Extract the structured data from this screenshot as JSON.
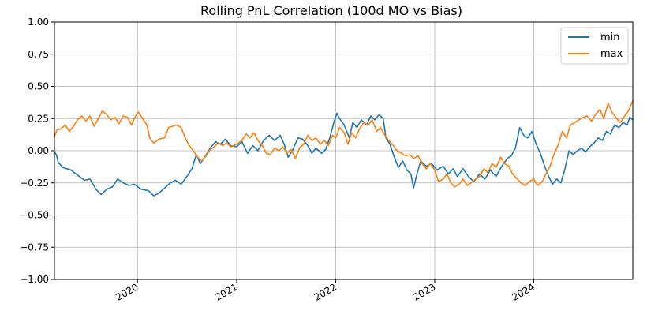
{
  "chart_data": {
    "type": "line",
    "title": "Rolling PnL Correlation (100d MO vs Bias)",
    "xlabel": "",
    "ylabel": "",
    "xlim": [
      "2019-03-01",
      "2024-12-31"
    ],
    "ylim": [
      -1.0,
      1.0
    ],
    "grid": true,
    "legend_position": "top-right",
    "y_ticks": [
      -1.0,
      -0.75,
      -0.5,
      -0.25,
      0.0,
      0.25,
      0.5,
      0.75,
      1.0
    ],
    "y_tick_labels": [
      "−1.00",
      "−0.75",
      "−0.50",
      "−0.25",
      "0.00",
      "0.25",
      "0.50",
      "0.75",
      "1.00"
    ],
    "x_ticks": [
      "2020-01-01",
      "2021-01-01",
      "2022-01-01",
      "2023-01-01",
      "2024-01-01"
    ],
    "x_tick_labels": [
      "2020",
      "2021",
      "2022",
      "2023",
      "2024"
    ],
    "series": [
      {
        "name": "min",
        "color": "#1f77b4",
        "points": [
          [
            "2019-03-01",
            -0.01
          ],
          [
            "2019-03-08",
            -0.03
          ],
          [
            "2019-03-15",
            -0.09
          ],
          [
            "2019-04-01",
            -0.13
          ],
          [
            "2019-05-01",
            -0.15
          ],
          [
            "2019-06-01",
            -0.2
          ],
          [
            "2019-06-20",
            -0.23
          ],
          [
            "2019-07-10",
            -0.22
          ],
          [
            "2019-08-01",
            -0.3
          ],
          [
            "2019-08-20",
            -0.34
          ],
          [
            "2019-09-10",
            -0.3
          ],
          [
            "2019-10-01",
            -0.28
          ],
          [
            "2019-10-20",
            -0.22
          ],
          [
            "2019-11-10",
            -0.25
          ],
          [
            "2019-12-01",
            -0.27
          ],
          [
            "2019-12-20",
            -0.26
          ],
          [
            "2020-01-15",
            -0.3
          ],
          [
            "2020-02-10",
            -0.31
          ],
          [
            "2020-03-01",
            -0.35
          ],
          [
            "2020-03-20",
            -0.33
          ],
          [
            "2020-04-10",
            -0.29
          ],
          [
            "2020-05-01",
            -0.25
          ],
          [
            "2020-05-20",
            -0.23
          ],
          [
            "2020-06-10",
            -0.26
          ],
          [
            "2020-07-01",
            -0.2
          ],
          [
            "2020-07-20",
            -0.14
          ],
          [
            "2020-08-05",
            -0.03
          ],
          [
            "2020-08-20",
            -0.1
          ],
          [
            "2020-09-05",
            -0.05
          ],
          [
            "2020-09-25",
            0.02
          ],
          [
            "2020-10-15",
            0.07
          ],
          [
            "2020-11-01",
            0.05
          ],
          [
            "2020-11-20",
            0.09
          ],
          [
            "2020-12-10",
            0.04
          ],
          [
            "2021-01-01",
            0.03
          ],
          [
            "2021-01-20",
            0.07
          ],
          [
            "2021-02-10",
            -0.02
          ],
          [
            "2021-03-01",
            0.04
          ],
          [
            "2021-03-20",
            0.0
          ],
          [
            "2021-04-10",
            0.08
          ],
          [
            "2021-05-01",
            0.12
          ],
          [
            "2021-05-20",
            0.08
          ],
          [
            "2021-06-10",
            0.12
          ],
          [
            "2021-06-25",
            0.05
          ],
          [
            "2021-07-10",
            -0.05
          ],
          [
            "2021-07-25",
            0.0
          ],
          [
            "2021-08-15",
            0.1
          ],
          [
            "2021-09-01",
            0.09
          ],
          [
            "2021-09-20",
            0.04
          ],
          [
            "2021-10-05",
            -0.02
          ],
          [
            "2021-10-20",
            0.02
          ],
          [
            "2021-11-10",
            -0.02
          ],
          [
            "2021-11-25",
            0.01
          ],
          [
            "2021-12-10",
            0.1
          ],
          [
            "2021-12-25",
            0.22
          ],
          [
            "2022-01-05",
            0.29
          ],
          [
            "2022-01-15",
            0.25
          ],
          [
            "2022-02-01",
            0.2
          ],
          [
            "2022-02-20",
            0.1
          ],
          [
            "2022-03-05",
            0.22
          ],
          [
            "2022-03-20",
            0.18
          ],
          [
            "2022-04-05",
            0.24
          ],
          [
            "2022-04-25",
            0.2
          ],
          [
            "2022-05-10",
            0.27
          ],
          [
            "2022-05-25",
            0.24
          ],
          [
            "2022-06-10",
            0.28
          ],
          [
            "2022-06-25",
            0.25
          ],
          [
            "2022-07-05",
            0.1
          ],
          [
            "2022-07-20",
            0.05
          ],
          [
            "2022-08-05",
            -0.05
          ],
          [
            "2022-08-20",
            -0.13
          ],
          [
            "2022-09-05",
            -0.08
          ],
          [
            "2022-09-20",
            -0.15
          ],
          [
            "2022-10-05",
            -0.18
          ],
          [
            "2022-10-15",
            -0.29
          ],
          [
            "2022-10-25",
            -0.2
          ],
          [
            "2022-11-10",
            -0.08
          ],
          [
            "2022-12-01",
            -0.12
          ],
          [
            "2022-12-20",
            -0.1
          ],
          [
            "2023-01-10",
            -0.15
          ],
          [
            "2023-02-01",
            -0.12
          ],
          [
            "2023-02-20",
            -0.18
          ],
          [
            "2023-03-10",
            -0.14
          ],
          [
            "2023-03-25",
            -0.2
          ],
          [
            "2023-04-15",
            -0.14
          ],
          [
            "2023-05-05",
            -0.2
          ],
          [
            "2023-05-25",
            -0.24
          ],
          [
            "2023-06-15",
            -0.18
          ],
          [
            "2023-07-05",
            -0.22
          ],
          [
            "2023-07-25",
            -0.15
          ],
          [
            "2023-08-15",
            -0.2
          ],
          [
            "2023-09-05",
            -0.12
          ],
          [
            "2023-09-25",
            -0.06
          ],
          [
            "2023-10-10",
            -0.04
          ],
          [
            "2023-10-25",
            0.02
          ],
          [
            "2023-11-10",
            0.18
          ],
          [
            "2023-11-25",
            0.12
          ],
          [
            "2023-12-10",
            0.1
          ],
          [
            "2023-12-25",
            0.15
          ],
          [
            "2024-01-10",
            0.05
          ],
          [
            "2024-01-25",
            -0.02
          ],
          [
            "2024-02-10",
            -0.12
          ],
          [
            "2024-02-25",
            -0.2
          ],
          [
            "2024-03-10",
            -0.26
          ],
          [
            "2024-03-25",
            -0.22
          ],
          [
            "2024-04-10",
            -0.25
          ],
          [
            "2024-04-25",
            -0.14
          ],
          [
            "2024-05-10",
            0.0
          ],
          [
            "2024-05-25",
            -0.03
          ],
          [
            "2024-06-10",
            0.0
          ],
          [
            "2024-06-25",
            0.02
          ],
          [
            "2024-07-10",
            -0.01
          ],
          [
            "2024-07-25",
            0.03
          ],
          [
            "2024-08-10",
            0.06
          ],
          [
            "2024-08-25",
            0.1
          ],
          [
            "2024-09-10",
            0.08
          ],
          [
            "2024-09-25",
            0.15
          ],
          [
            "2024-10-10",
            0.13
          ],
          [
            "2024-10-25",
            0.2
          ],
          [
            "2024-11-10",
            0.18
          ],
          [
            "2024-11-25",
            0.22
          ],
          [
            "2024-12-10",
            0.2
          ],
          [
            "2024-12-20",
            0.26
          ],
          [
            "2024-12-31",
            0.24
          ]
        ]
      },
      {
        "name": "max",
        "color": "#ff7f0e",
        "points": [
          [
            "2019-03-01",
            0.11
          ],
          [
            "2019-03-10",
            0.16
          ],
          [
            "2019-03-25",
            0.17
          ],
          [
            "2019-04-10",
            0.2
          ],
          [
            "2019-04-25",
            0.15
          ],
          [
            "2019-05-10",
            0.19
          ],
          [
            "2019-05-25",
            0.24
          ],
          [
            "2019-06-10",
            0.27
          ],
          [
            "2019-06-25",
            0.23
          ],
          [
            "2019-07-10",
            0.27
          ],
          [
            "2019-07-25",
            0.19
          ],
          [
            "2019-08-10",
            0.25
          ],
          [
            "2019-08-25",
            0.31
          ],
          [
            "2019-09-10",
            0.28
          ],
          [
            "2019-09-25",
            0.24
          ],
          [
            "2019-10-10",
            0.26
          ],
          [
            "2019-10-25",
            0.21
          ],
          [
            "2019-11-10",
            0.27
          ],
          [
            "2019-11-25",
            0.26
          ],
          [
            "2019-12-10",
            0.2
          ],
          [
            "2019-12-25",
            0.27
          ],
          [
            "2020-01-05",
            0.3
          ],
          [
            "2020-01-20",
            0.25
          ],
          [
            "2020-02-05",
            0.2
          ],
          [
            "2020-02-15",
            0.1
          ],
          [
            "2020-03-01",
            0.06
          ],
          [
            "2020-03-20",
            0.09
          ],
          [
            "2020-04-10",
            0.1
          ],
          [
            "2020-04-25",
            0.18
          ],
          [
            "2020-05-10",
            0.19
          ],
          [
            "2020-05-25",
            0.2
          ],
          [
            "2020-06-10",
            0.18
          ],
          [
            "2020-06-25",
            0.1
          ],
          [
            "2020-07-10",
            0.04
          ],
          [
            "2020-07-25",
            0.0
          ],
          [
            "2020-08-10",
            -0.05
          ],
          [
            "2020-08-25",
            -0.08
          ],
          [
            "2020-09-10",
            -0.04
          ],
          [
            "2020-09-25",
            0.01
          ],
          [
            "2020-10-10",
            0.03
          ],
          [
            "2020-10-25",
            0.06
          ],
          [
            "2020-11-10",
            0.04
          ],
          [
            "2020-11-25",
            0.06
          ],
          [
            "2020-12-10",
            0.03
          ],
          [
            "2021-01-01",
            0.05
          ],
          [
            "2021-01-20",
            0.08
          ],
          [
            "2021-02-05",
            0.13
          ],
          [
            "2021-02-20",
            0.1
          ],
          [
            "2021-03-05",
            0.14
          ],
          [
            "2021-03-20",
            0.08
          ],
          [
            "2021-04-05",
            0.04
          ],
          [
            "2021-04-20",
            -0.02
          ],
          [
            "2021-05-05",
            -0.03
          ],
          [
            "2021-05-20",
            0.02
          ],
          [
            "2021-06-05",
            0.0
          ],
          [
            "2021-06-20",
            0.03
          ],
          [
            "2021-07-05",
            -0.02
          ],
          [
            "2021-07-20",
            0.01
          ],
          [
            "2021-08-05",
            -0.06
          ],
          [
            "2021-08-20",
            0.02
          ],
          [
            "2021-09-05",
            0.05
          ],
          [
            "2021-09-20",
            0.12
          ],
          [
            "2021-10-05",
            0.08
          ],
          [
            "2021-10-20",
            0.1
          ],
          [
            "2021-11-05",
            0.05
          ],
          [
            "2021-11-20",
            0.08
          ],
          [
            "2021-12-05",
            0.04
          ],
          [
            "2021-12-20",
            0.12
          ],
          [
            "2022-01-01",
            0.1
          ],
          [
            "2022-01-15",
            0.18
          ],
          [
            "2022-02-01",
            0.14
          ],
          [
            "2022-02-15",
            0.05
          ],
          [
            "2022-03-01",
            0.14
          ],
          [
            "2022-03-15",
            0.1
          ],
          [
            "2022-04-01",
            0.18
          ],
          [
            "2022-04-15",
            0.22
          ],
          [
            "2022-05-01",
            0.2
          ],
          [
            "2022-05-15",
            0.24
          ],
          [
            "2022-06-01",
            0.15
          ],
          [
            "2022-06-15",
            0.18
          ],
          [
            "2022-07-01",
            0.12
          ],
          [
            "2022-07-15",
            0.08
          ],
          [
            "2022-08-01",
            0.04
          ],
          [
            "2022-08-15",
            0.0
          ],
          [
            "2022-09-01",
            -0.02
          ],
          [
            "2022-09-15",
            -0.04
          ],
          [
            "2022-10-01",
            -0.03
          ],
          [
            "2022-10-15",
            -0.06
          ],
          [
            "2022-11-01",
            -0.04
          ],
          [
            "2022-11-15",
            -0.1
          ],
          [
            "2022-12-01",
            -0.14
          ],
          [
            "2022-12-15",
            -0.1
          ],
          [
            "2023-01-01",
            -0.15
          ],
          [
            "2023-01-15",
            -0.24
          ],
          [
            "2023-02-01",
            -0.22
          ],
          [
            "2023-02-15",
            -0.18
          ],
          [
            "2023-03-01",
            -0.25
          ],
          [
            "2023-03-15",
            -0.28
          ],
          [
            "2023-04-01",
            -0.26
          ],
          [
            "2023-04-15",
            -0.22
          ],
          [
            "2023-05-01",
            -0.27
          ],
          [
            "2023-05-15",
            -0.25
          ],
          [
            "2023-06-01",
            -0.22
          ],
          [
            "2023-06-15",
            -0.2
          ],
          [
            "2023-07-01",
            -0.14
          ],
          [
            "2023-07-15",
            -0.17
          ],
          [
            "2023-08-01",
            -0.1
          ],
          [
            "2023-08-15",
            -0.13
          ],
          [
            "2023-09-01",
            -0.05
          ],
          [
            "2023-09-15",
            -0.1
          ],
          [
            "2023-10-01",
            -0.12
          ],
          [
            "2023-10-15",
            -0.18
          ],
          [
            "2023-11-01",
            -0.22
          ],
          [
            "2023-11-15",
            -0.25
          ],
          [
            "2023-12-01",
            -0.27
          ],
          [
            "2023-12-15",
            -0.24
          ],
          [
            "2024-01-01",
            -0.22
          ],
          [
            "2024-01-15",
            -0.27
          ],
          [
            "2024-02-01",
            -0.24
          ],
          [
            "2024-02-15",
            -0.18
          ],
          [
            "2024-03-01",
            -0.12
          ],
          [
            "2024-03-15",
            -0.03
          ],
          [
            "2024-04-01",
            0.05
          ],
          [
            "2024-04-15",
            0.15
          ],
          [
            "2024-05-01",
            0.1
          ],
          [
            "2024-05-15",
            0.2
          ],
          [
            "2024-06-01",
            0.22
          ],
          [
            "2024-06-15",
            0.24
          ],
          [
            "2024-07-01",
            0.26
          ],
          [
            "2024-07-15",
            0.27
          ],
          [
            "2024-08-01",
            0.23
          ],
          [
            "2024-08-15",
            0.28
          ],
          [
            "2024-09-01",
            0.32
          ],
          [
            "2024-09-15",
            0.25
          ],
          [
            "2024-10-01",
            0.37
          ],
          [
            "2024-10-15",
            0.3
          ],
          [
            "2024-11-01",
            0.25
          ],
          [
            "2024-11-15",
            0.22
          ],
          [
            "2024-12-01",
            0.27
          ],
          [
            "2024-12-15",
            0.31
          ],
          [
            "2024-12-31",
            0.39
          ]
        ]
      }
    ]
  }
}
